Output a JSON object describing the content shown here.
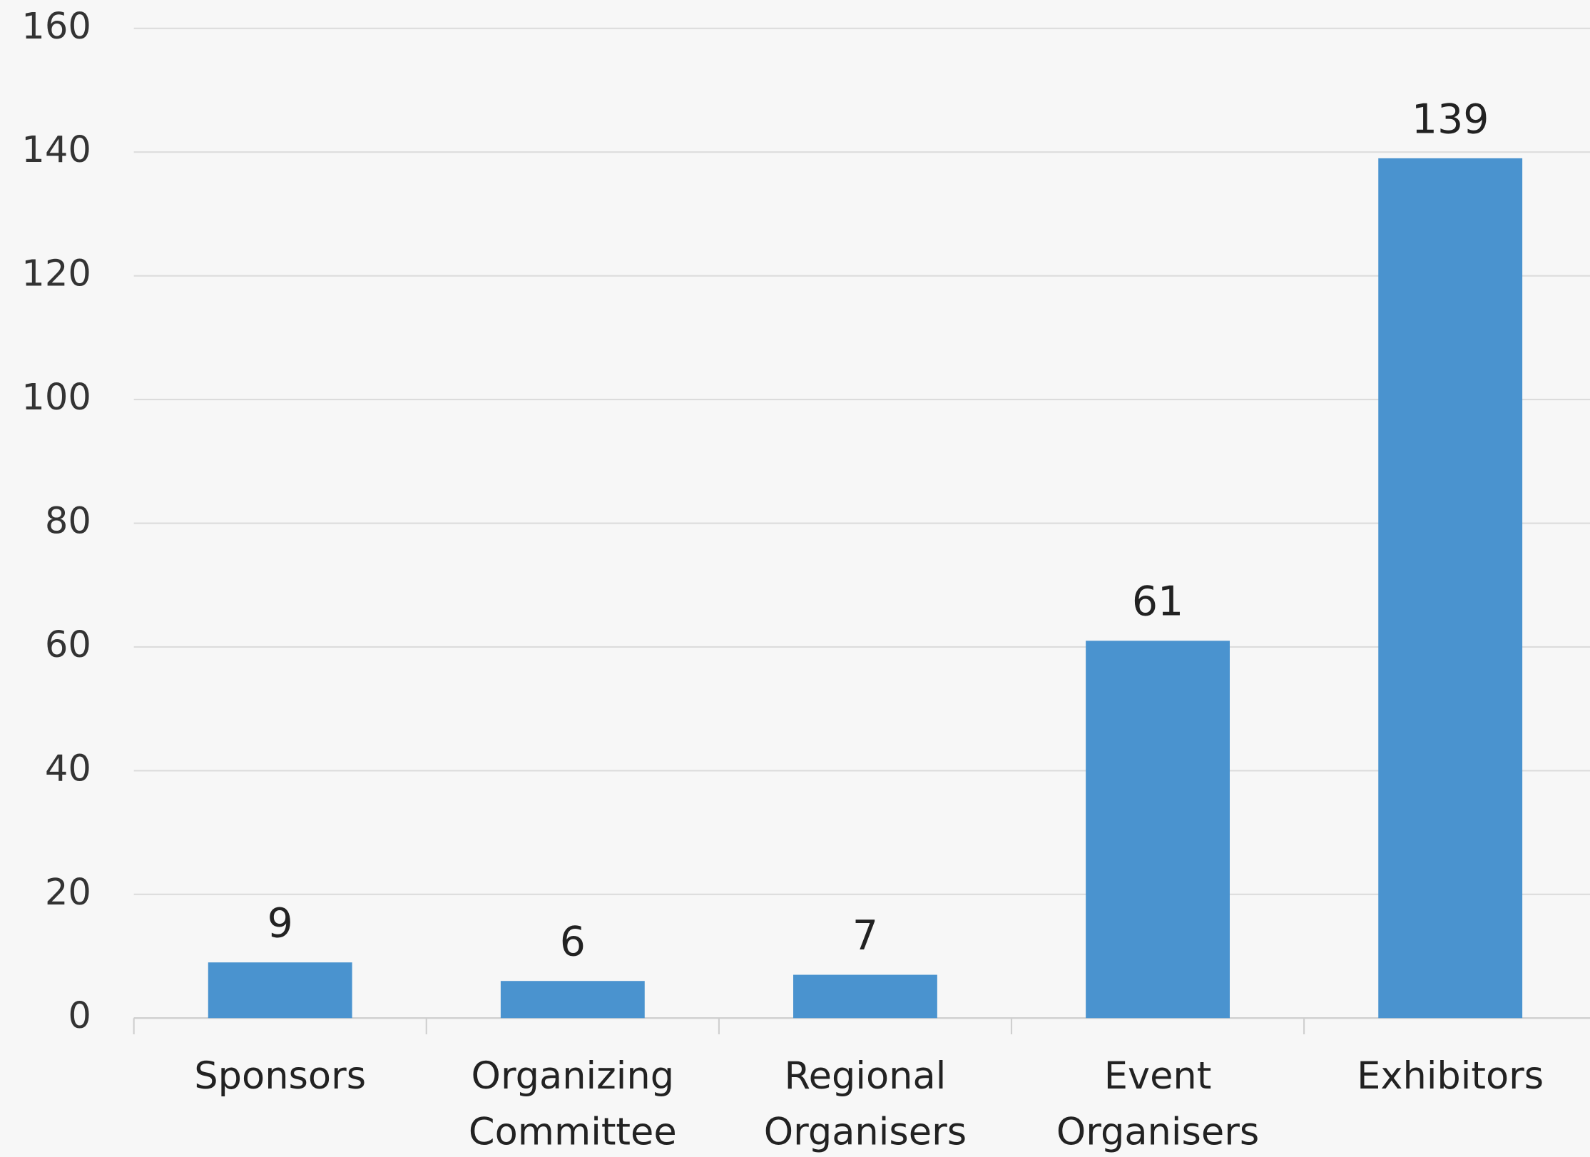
{
  "chart_data": {
    "type": "bar",
    "categories": [
      "Sponsors",
      "Organizing Committee",
      "Regional Organisers",
      "Event Organisers",
      "Exhibitors"
    ],
    "values": [
      9,
      6,
      7,
      61,
      139
    ],
    "color": "#4a93cf",
    "ylim": [
      0,
      160
    ],
    "yticks": [
      0,
      20,
      40,
      60,
      80,
      100,
      120,
      140,
      160
    ],
    "grid": true
  }
}
